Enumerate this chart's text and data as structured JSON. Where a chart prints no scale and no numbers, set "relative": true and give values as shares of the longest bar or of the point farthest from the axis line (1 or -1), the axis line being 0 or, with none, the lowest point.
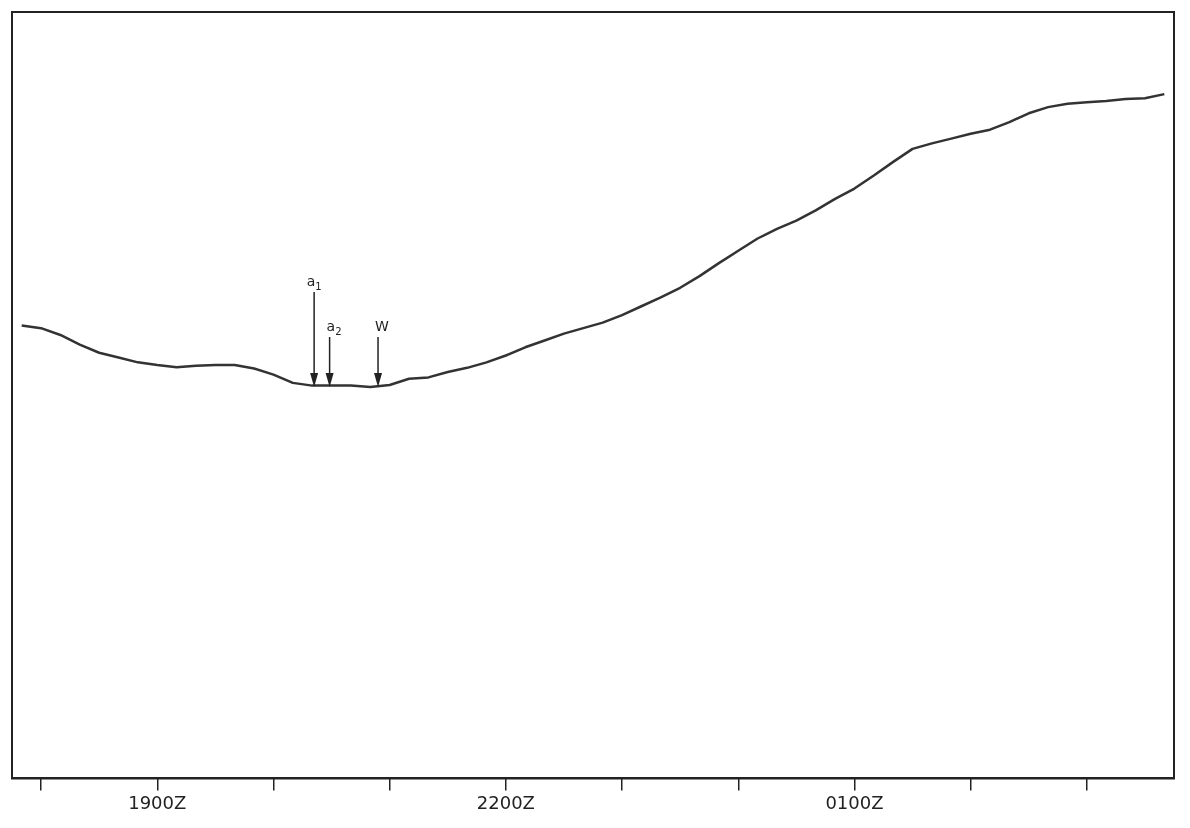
{
  "chart_data": {
    "type": "line",
    "relative": true,
    "grid": false,
    "legend": false,
    "marker": "none",
    "line_style": "solid",
    "categories": [
      null,
      null,
      null,
      null,
      null,
      null,
      null,
      "1900Z",
      null,
      null,
      null,
      null,
      null,
      null,
      null,
      null,
      null,
      null,
      null,
      null,
      null,
      null,
      null,
      null,
      null,
      "2200Z",
      null,
      null,
      null,
      null,
      null,
      null,
      null,
      null,
      null,
      null,
      null,
      null,
      null,
      null,
      null,
      null,
      null,
      "0100Z",
      null,
      null,
      null,
      null,
      null,
      null,
      null,
      null,
      null,
      null,
      null,
      null,
      null,
      null,
      null,
      null
    ],
    "series": [
      {
        "color": "#333333",
        "values": [
          0.662,
          0.658,
          0.648,
          0.634,
          0.622,
          0.615,
          0.608,
          0.604,
          0.601,
          0.603,
          0.604,
          0.604,
          0.599,
          0.59,
          0.578,
          0.574,
          0.574,
          0.574,
          0.572,
          0.575,
          0.584,
          0.586,
          0.594,
          0.6,
          0.608,
          0.618,
          0.63,
          0.64,
          0.65,
          0.658,
          0.666,
          0.677,
          0.69,
          0.703,
          0.717,
          0.734,
          0.753,
          0.771,
          0.789,
          0.803,
          0.815,
          0.83,
          0.847,
          0.862,
          0.881,
          0.901,
          0.92,
          0.928,
          0.935,
          0.942,
          0.948,
          0.959,
          0.972,
          0.981,
          0.986,
          0.988,
          0.99,
          0.993,
          0.994,
          1
        ]
      }
    ],
    "annotations": [
      "a$_{1}$",
      "a$_{2}$",
      "W"
    ]
  }
}
